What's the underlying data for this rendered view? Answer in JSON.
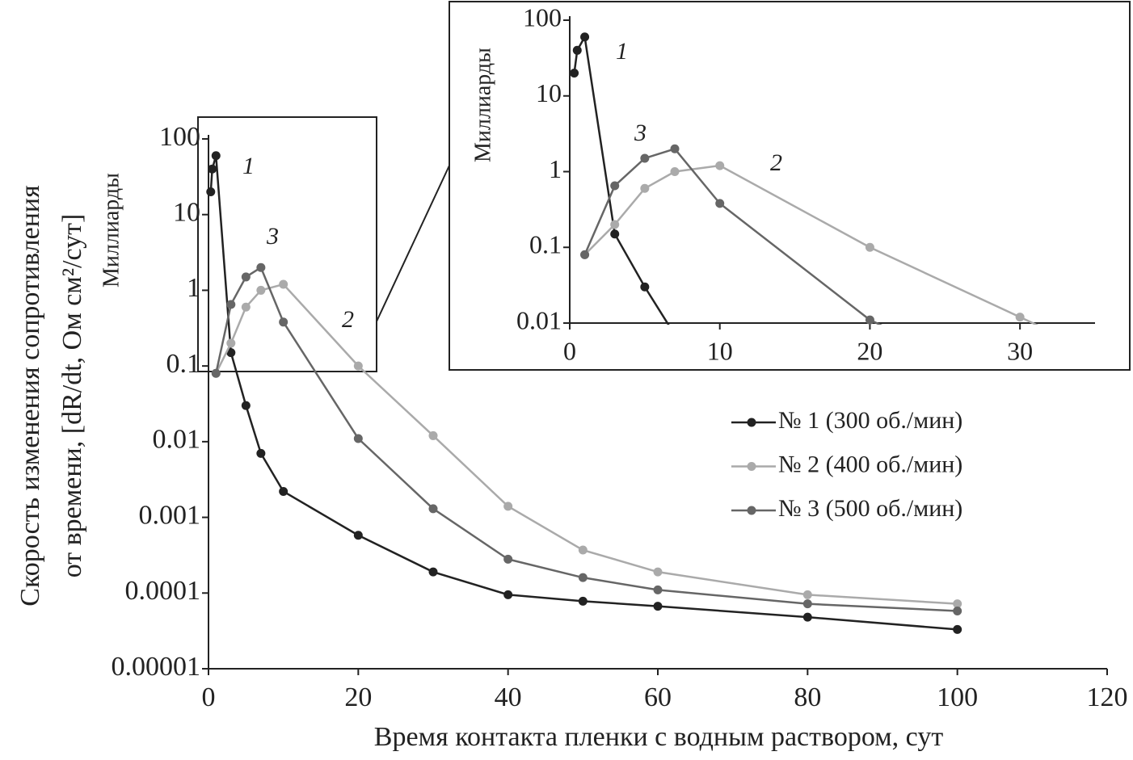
{
  "chart_data": {
    "type": "line",
    "log_y": true,
    "y_label_lines": [
      "Скорость изменения сопротивления",
      "от времени, [dR/dt, Ом см²/сут]"
    ],
    "x_label": "Время контакта пленки с водным раствором, сут",
    "unit_note": "Миллиарды",
    "xlim": [
      0,
      120
    ],
    "xticks": [
      0,
      20,
      40,
      60,
      80,
      100,
      120
    ],
    "ylim": [
      1e-05,
      100
    ],
    "yticks": [
      1e-05,
      0.0001,
      0.001,
      0.01,
      0.1,
      1,
      10,
      100
    ],
    "series": [
      {
        "name": "№ 1 (300 об./мин)",
        "label": "1",
        "color": "#222222",
        "x": [
          0.3,
          0.5,
          1,
          3,
          5,
          7,
          10,
          20,
          30,
          40,
          50,
          60,
          80,
          100
        ],
        "values": [
          20,
          40,
          60,
          0.15,
          0.03,
          0.007,
          0.0022,
          0.00058,
          0.00019,
          9.5e-05,
          7.8e-05,
          6.7e-05,
          4.8e-05,
          3.3e-05
        ]
      },
      {
        "name": "№ 2 (400 об./мин)",
        "label": "2",
        "color": "#aaaaaa",
        "x": [
          1,
          3,
          5,
          7,
          10,
          20,
          30,
          40,
          50,
          60,
          80,
          100
        ],
        "values": [
          0.08,
          0.2,
          0.6,
          1.0,
          1.2,
          0.1,
          0.012,
          0.0014,
          0.00037,
          0.00019,
          9.5e-05,
          7.2e-05
        ]
      },
      {
        "name": "№ 3 (500 об./мин)",
        "label": "3",
        "color": "#666666",
        "x": [
          1,
          3,
          5,
          7,
          10,
          20,
          30,
          40,
          50,
          60,
          80,
          100
        ],
        "values": [
          0.08,
          0.65,
          1.5,
          2.0,
          0.38,
          0.011,
          0.0013,
          0.00028,
          0.00016,
          0.00011,
          7.2e-05,
          5.8e-05
        ]
      }
    ],
    "inset": {
      "xlim": [
        0,
        35
      ],
      "xticks": [
        0,
        10,
        20,
        30
      ],
      "ylim": [
        0.01,
        100
      ],
      "yticks": [
        0.01,
        0.1,
        1,
        10,
        100
      ]
    }
  }
}
